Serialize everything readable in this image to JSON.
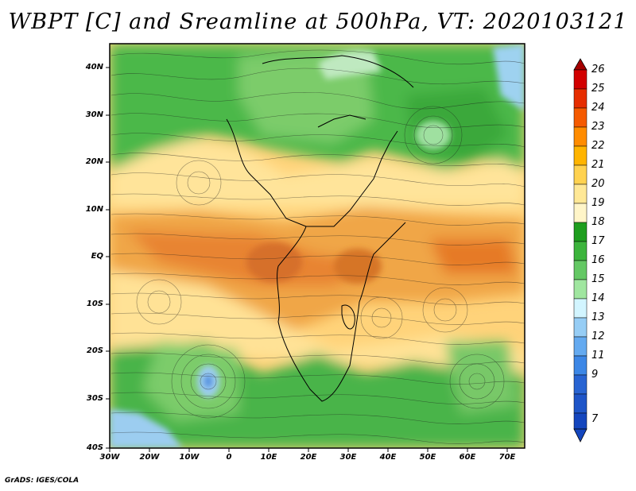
{
  "title": "WBPT [C] and Sreamline at 500hPa, VT: 2020103121",
  "footer": "GrADS: IGES/COLA",
  "axes": {
    "lat_labels": [
      "40N",
      "30N",
      "20N",
      "10N",
      "EQ",
      "10S",
      "20S",
      "30S",
      "40S"
    ],
    "lon_labels": [
      "30W",
      "20W",
      "10W",
      "0",
      "10E",
      "20E",
      "30E",
      "40E",
      "50E",
      "60E",
      "70E"
    ]
  },
  "colorbar": {
    "labels": [
      "26",
      "25",
      "24",
      "23",
      "22",
      "21",
      "20",
      "19",
      "18",
      "17",
      "16",
      "15",
      "14",
      "13",
      "12",
      "11",
      "9",
      "7"
    ],
    "colors": [
      "#a50000",
      "#d20000",
      "#e62d00",
      "#f55a00",
      "#ff8c00",
      "#ffb400",
      "#ffd250",
      "#ffe896",
      "#1e9e1e",
      "#3cb43c",
      "#64c864",
      "#a0e6a0",
      "#d2f5ff",
      "#96cdf5",
      "#64aaf0",
      "#3c87e6",
      "#2864d2",
      "#1446be"
    ]
  },
  "legend_colors": {
    "ocean_warm": "#f0b050",
    "tropical": "#e6821e",
    "cool_green": "#46b446",
    "cold_blue": "#78b4f0"
  }
}
